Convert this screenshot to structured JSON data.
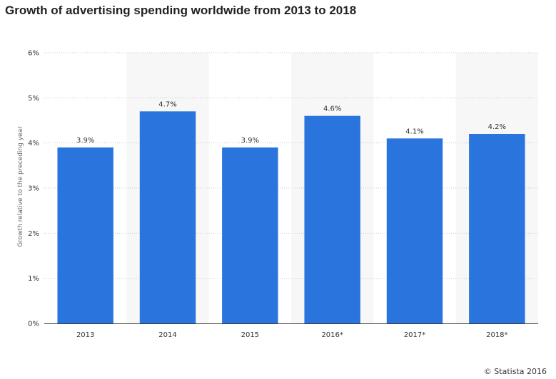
{
  "chart_data": {
    "type": "bar",
    "title": "Growth of advertising spending worldwide from 2013 to 2018",
    "xlabel": "",
    "ylabel": "Growth relative to the preceding year",
    "categories": [
      "2013",
      "2014",
      "2015",
      "2016*",
      "2017*",
      "2018*"
    ],
    "values": [
      3.9,
      4.7,
      3.9,
      4.6,
      4.1,
      4.2
    ],
    "value_labels": [
      "3.9%",
      "4.7%",
      "3.9%",
      "4.6%",
      "4.1%",
      "4.2%"
    ],
    "ylim": [
      0,
      6
    ],
    "yticks": [
      0,
      1,
      2,
      3,
      4,
      5,
      6
    ],
    "ytick_labels": [
      "0%",
      "1%",
      "2%",
      "3%",
      "4%",
      "5%",
      "6%"
    ],
    "grid": true,
    "grid_style": "dotted",
    "bar_color": "#2a74de",
    "band_color": "#f7f7f7",
    "legend": "none"
  },
  "credit": "© Statista 2016"
}
